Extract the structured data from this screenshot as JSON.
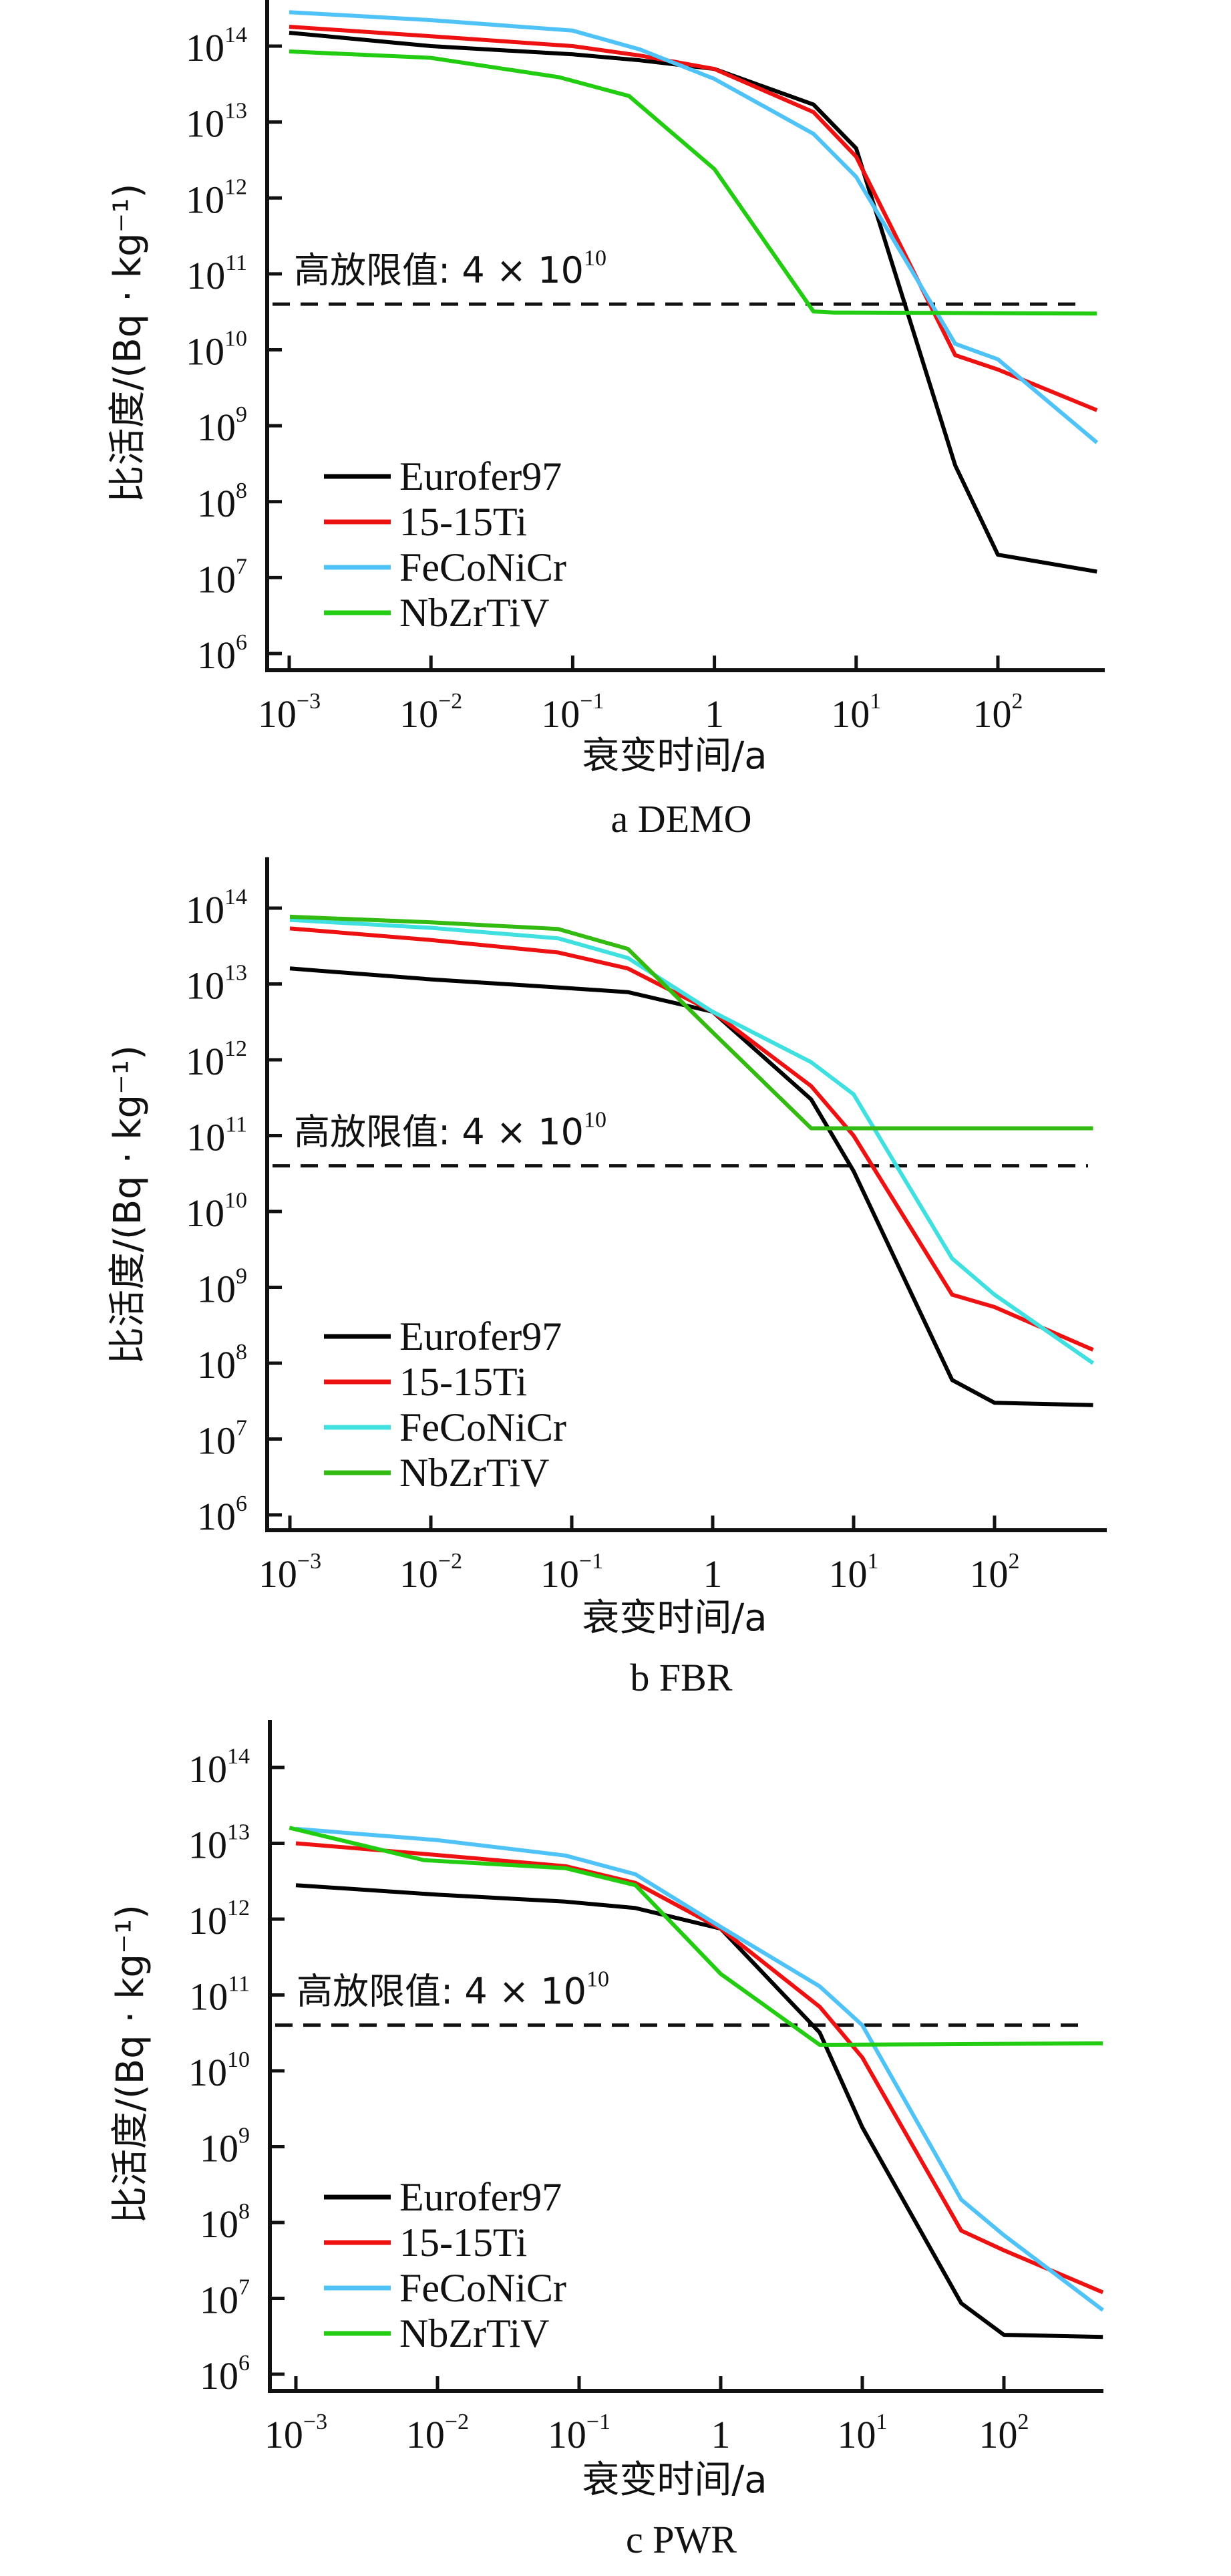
{
  "chart_data": [
    {
      "type": "line",
      "title": "a  DEMO",
      "xlabel": "衰变时间/a",
      "ylabel": "比活度/(Bq · kg⁻¹)",
      "xscale": "log",
      "yscale": "log",
      "xlim": [
        0.0007,
        560
      ],
      "ylim": [
        1000000.0,
        400000000000000.0
      ],
      "xticks": [
        {
          "value": 0.001,
          "base": "10",
          "exp": "−3"
        },
        {
          "value": 0.01,
          "base": "10",
          "exp": "−2"
        },
        {
          "value": 0.1,
          "base": "10",
          "exp": "−1"
        },
        {
          "value": 1,
          "base": "1",
          "exp": ""
        },
        {
          "value": 10,
          "base": "10",
          "exp": "1"
        },
        {
          "value": 100,
          "base": "10",
          "exp": "2"
        }
      ],
      "yticks": [
        {
          "value": 1000000.0,
          "exp": "6"
        },
        {
          "value": 10000000.0,
          "exp": "7"
        },
        {
          "value": 100000000.0,
          "exp": "8"
        },
        {
          "value": 1000000000.0,
          "exp": "9"
        },
        {
          "value": 10000000000.0,
          "exp": "10"
        },
        {
          "value": 100000000000.0,
          "exp": "11"
        },
        {
          "value": 1000000000000.0,
          "exp": "12"
        },
        {
          "value": 10000000000000.0,
          "exp": "13"
        },
        {
          "value": 100000000000000.0,
          "exp": "14"
        }
      ],
      "threshold": {
        "value": 40000000000.0,
        "label_prefix": "高放限值: 4 × 10",
        "label_exp": "10"
      },
      "legend_position": "bottom-left",
      "series": [
        {
          "name": "Eurofer97",
          "color": "#000000",
          "points": [
            [
              0.001,
              150000000000000.0
            ],
            [
              0.01,
              100000000000000.0
            ],
            [
              0.1,
              78000000000000.0
            ],
            [
              0.3,
              65000000000000.0
            ],
            [
              1,
              50000000000000.0
            ],
            [
              5,
              17000000000000.0
            ],
            [
              10,
              4500000000000.0
            ],
            [
              50,
              300000000.0
            ],
            [
              100,
              20000000.0
            ],
            [
              500,
              12000000.0
            ]
          ]
        },
        {
          "name": "15-15Ti",
          "color": "#ee1111",
          "points": [
            [
              0.001,
              180000000000000.0
            ],
            [
              0.01,
              135000000000000.0
            ],
            [
              0.1,
              100000000000000.0
            ],
            [
              0.3,
              75000000000000.0
            ],
            [
              1,
              50000000000000.0
            ],
            [
              5,
              13500000000000.0
            ],
            [
              10,
              3500000000000.0
            ],
            [
              50,
              8500000000.0
            ],
            [
              100,
              5500000000.0
            ],
            [
              500,
              1600000000.0
            ]
          ]
        },
        {
          "name": "FeCoNiCr",
          "color": "#4fc3f7",
          "points": [
            [
              0.001,
              280000000000000.0
            ],
            [
              0.01,
              220000000000000.0
            ],
            [
              0.1,
              160000000000000.0
            ],
            [
              0.3,
              90000000000000.0
            ],
            [
              1,
              37000000000000.0
            ],
            [
              5,
              7000000000000.0
            ],
            [
              10,
              1900000000000.0
            ],
            [
              50,
              12000000000.0
            ],
            [
              100,
              7500000000.0
            ],
            [
              500,
              600000000.0
            ]
          ]
        },
        {
          "name": "NbZrTiV",
          "color": "#22cc11",
          "points": [
            [
              0.001,
              85000000000000.0
            ],
            [
              0.01,
              70000000000000.0
            ],
            [
              0.08,
              39000000000000.0
            ],
            [
              0.25,
              22000000000000.0
            ],
            [
              1,
              2400000000000.0
            ],
            [
              5,
              32000000000.0
            ],
            [
              7,
              31000000000.0
            ],
            [
              500,
              30000000000.0
            ]
          ]
        }
      ]
    },
    {
      "type": "line",
      "title": "b  FBR",
      "xlabel": "衰变时间/a",
      "ylabel": "比活度/(Bq · kg⁻¹)",
      "xscale": "log",
      "yscale": "log",
      "xlim": [
        0.0007,
        560
      ],
      "ylim": [
        1000000.0,
        400000000000000.0
      ],
      "xticks": [
        {
          "value": 0.001,
          "base": "10",
          "exp": "−3"
        },
        {
          "value": 0.01,
          "base": "10",
          "exp": "−2"
        },
        {
          "value": 0.1,
          "base": "10",
          "exp": "−1"
        },
        {
          "value": 1,
          "base": "1",
          "exp": ""
        },
        {
          "value": 10,
          "base": "10",
          "exp": "1"
        },
        {
          "value": 100,
          "base": "10",
          "exp": "2"
        }
      ],
      "yticks": [
        {
          "value": 1000000.0,
          "exp": "6"
        },
        {
          "value": 10000000.0,
          "exp": "7"
        },
        {
          "value": 100000000.0,
          "exp": "8"
        },
        {
          "value": 1000000000.0,
          "exp": "9"
        },
        {
          "value": 10000000000.0,
          "exp": "10"
        },
        {
          "value": 100000000000.0,
          "exp": "11"
        },
        {
          "value": 1000000000000.0,
          "exp": "12"
        },
        {
          "value": 10000000000000.0,
          "exp": "13"
        },
        {
          "value": 100000000000000.0,
          "exp": "14"
        }
      ],
      "threshold": {
        "value": 40000000000.0,
        "label_prefix": "高放限值: 4 × 10",
        "label_exp": "10"
      },
      "legend_position": "bottom-left",
      "series": [
        {
          "name": "Eurofer97",
          "color": "#000000",
          "points": [
            [
              0.001,
              16000000000000.0
            ],
            [
              0.01,
              11500000000000.0
            ],
            [
              0.08,
              9000000000000.0
            ],
            [
              0.25,
              7800000000000.0
            ],
            [
              1,
              4300000000000.0
            ],
            [
              5,
              300000000000.0
            ],
            [
              10,
              34000000000.0
            ],
            [
              50,
              60000000.0
            ],
            [
              100,
              30000000.0
            ],
            [
              500,
              28000000.0
            ]
          ]
        },
        {
          "name": "15-15Ti",
          "color": "#ee1111",
          "points": [
            [
              0.001,
              54000000000000.0
            ],
            [
              0.01,
              38000000000000.0
            ],
            [
              0.08,
              26000000000000.0
            ],
            [
              0.25,
              16000000000000.0
            ],
            [
              1,
              4300000000000.0
            ],
            [
              5,
              450000000000.0
            ],
            [
              10,
              100000000000.0
            ],
            [
              50,
              800000000.0
            ],
            [
              100,
              550000000.0
            ],
            [
              500,
              150000000.0
            ]
          ]
        },
        {
          "name": "FeCoNiCr",
          "color": "#40e0e0",
          "points": [
            [
              0.001,
              70000000000000.0
            ],
            [
              0.01,
              55000000000000.0
            ],
            [
              0.08,
              40000000000000.0
            ],
            [
              0.25,
              22000000000000.0
            ],
            [
              1,
              4300000000000.0
            ],
            [
              5,
              930000000000.0
            ],
            [
              10,
              350000000000.0
            ],
            [
              50,
              2400000000.0
            ],
            [
              100,
              800000000.0
            ],
            [
              500,
              100000000.0
            ]
          ]
        },
        {
          "name": "NbZrTiV",
          "color": "#33bb11",
          "points": [
            [
              0.001,
              77000000000000.0
            ],
            [
              0.01,
              65000000000000.0
            ],
            [
              0.08,
              53000000000000.0
            ],
            [
              0.25,
              29000000000000.0
            ],
            [
              1,
              2300000000000.0
            ],
            [
              5,
              125000000000.0
            ],
            [
              500,
              125000000000.0
            ]
          ]
        }
      ]
    },
    {
      "type": "line",
      "title": "c  PWR",
      "xlabel": "衰变时间/a",
      "ylabel": "比活度/(Bq · kg⁻¹)",
      "xscale": "log",
      "yscale": "log",
      "xlim": [
        0.0007,
        560
      ],
      "ylim": [
        1000000.0,
        400000000000000.0
      ],
      "xticks": [
        {
          "value": 0.001,
          "base": "10",
          "exp": "−3"
        },
        {
          "value": 0.01,
          "base": "10",
          "exp": "−2"
        },
        {
          "value": 0.1,
          "base": "10",
          "exp": "−1"
        },
        {
          "value": 1,
          "base": "1",
          "exp": ""
        },
        {
          "value": 10,
          "base": "10",
          "exp": "1"
        },
        {
          "value": 100,
          "base": "10",
          "exp": "2"
        }
      ],
      "yticks": [
        {
          "value": 1000000.0,
          "exp": "6"
        },
        {
          "value": 10000000.0,
          "exp": "7"
        },
        {
          "value": 100000000.0,
          "exp": "8"
        },
        {
          "value": 1000000000.0,
          "exp": "9"
        },
        {
          "value": 10000000000.0,
          "exp": "10"
        },
        {
          "value": 100000000000.0,
          "exp": "11"
        },
        {
          "value": 1000000000000.0,
          "exp": "12"
        },
        {
          "value": 10000000000000.0,
          "exp": "13"
        },
        {
          "value": 100000000000000.0,
          "exp": "14"
        }
      ],
      "threshold": {
        "value": 40000000000.0,
        "label_prefix": "高放限值: 4 × 10",
        "label_exp": "10"
      },
      "legend_position": "bottom-left",
      "series": [
        {
          "name": "Eurofer97",
          "color": "#000000",
          "points": [
            [
              0.001,
              2800000000000.0
            ],
            [
              0.01,
              2100000000000.0
            ],
            [
              0.08,
              1700000000000.0
            ],
            [
              0.25,
              1400000000000.0
            ],
            [
              1,
              750000000000.0
            ],
            [
              5,
              32000000000.0
            ],
            [
              10,
              1800000000.0
            ],
            [
              50,
              8600000.0
            ],
            [
              100,
              3300000.0
            ],
            [
              500,
              3100000.0
            ]
          ]
        },
        {
          "name": "15-15Ti",
          "color": "#ee1111",
          "points": [
            [
              0.001,
              10000000000000.0
            ],
            [
              0.01,
              7000000000000.0
            ],
            [
              0.08,
              5000000000000.0
            ],
            [
              0.25,
              3000000000000.0
            ],
            [
              1,
              750000000000.0
            ],
            [
              5,
              70000000000.0
            ],
            [
              10,
              15000000000.0
            ],
            [
              50,
              78000000.0
            ],
            [
              100,
              43000000.0
            ],
            [
              500,
              12000000.0
            ]
          ]
        },
        {
          "name": "FeCoNiCr",
          "color": "#4fc3f7",
          "points": [
            [
              0.001,
              15500000000000.0
            ],
            [
              0.01,
              11000000000000.0
            ],
            [
              0.08,
              6900000000000.0
            ],
            [
              0.25,
              3900000000000.0
            ],
            [
              1,
              790000000000.0
            ],
            [
              5,
              130000000000.0
            ],
            [
              10,
              40000000000.0
            ],
            [
              50,
              200000000.0
            ],
            [
              100,
              68000000.0
            ],
            [
              500,
              7000000.0
            ]
          ]
        },
        {
          "name": "NbZrTiV",
          "color": "#22cc11",
          "points": [
            [
              0.0009,
              16000000000000.0
            ],
            [
              0.008,
              6000000000000.0
            ],
            [
              0.08,
              4700000000000.0
            ],
            [
              0.25,
              2800000000000.0
            ],
            [
              1,
              190000000000.0
            ],
            [
              5,
              22000000000.0
            ],
            [
              500,
              23000000000.0
            ]
          ]
        }
      ]
    }
  ]
}
